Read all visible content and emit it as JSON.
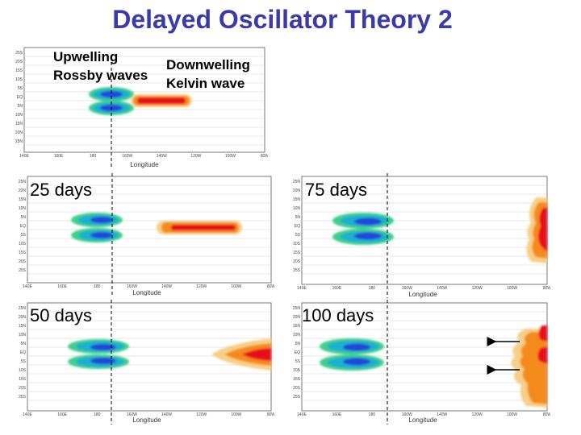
{
  "slide": {
    "title": "Delayed Oscillator Theory 2",
    "labels": {
      "upwelling": "Upwelling",
      "rossby": "Rossby waves",
      "downwelling": "Downwelling",
      "kelvin": "Kelvin wave"
    },
    "arrow_count": 2
  },
  "panels": [
    {
      "id": "initial",
      "caption": "",
      "xlabel": "Longitude",
      "yticks": [
        "25S",
        "20S",
        "15S",
        "10S",
        "5S",
        "EQ",
        "5N",
        "10N",
        "15N",
        "20N",
        "25N"
      ],
      "xticks": [
        "140E",
        "160E",
        "180",
        "160W",
        "140W",
        "120W",
        "100W",
        "80W"
      ]
    },
    {
      "id": "25",
      "caption": "25 days",
      "xlabel": "Longitude",
      "yticks": [
        "25N",
        "20N",
        "15N",
        "10N",
        "5N",
        "EQ",
        "5S",
        "10S",
        "15S",
        "20S",
        "25S"
      ],
      "xticks": [
        "140E",
        "160E",
        "180",
        "160W",
        "140W",
        "120W",
        "100W",
        "80W"
      ]
    },
    {
      "id": "75",
      "caption": "75 days",
      "xlabel": "Longitude",
      "yticks": [
        "25N",
        "20N",
        "15N",
        "10N",
        "5N",
        "EQ",
        "5S",
        "10S",
        "15S",
        "20S",
        "25S"
      ],
      "xticks": [
        "140E",
        "160E",
        "180",
        "160W",
        "140W",
        "120W",
        "100W",
        "80W"
      ]
    },
    {
      "id": "50",
      "caption": "50 days",
      "xlabel": "Longitude",
      "yticks": [
        "25N",
        "20N",
        "15N",
        "10N",
        "5N",
        "EQ",
        "5S",
        "10S",
        "15S",
        "20S",
        "25S"
      ],
      "xticks": [
        "140E",
        "160E",
        "180",
        "160W",
        "140W",
        "120W",
        "100W",
        "80W"
      ]
    },
    {
      "id": "100",
      "caption": "100 days",
      "xlabel": "Longitude",
      "yticks": [
        "25N",
        "20N",
        "15N",
        "10N",
        "5N",
        "EQ",
        "5S",
        "10S",
        "15S",
        "20S",
        "25S"
      ],
      "xticks": [
        "140E",
        "160E",
        "180",
        "160W",
        "140W",
        "120W",
        "100W",
        "80W"
      ]
    }
  ],
  "colors": {
    "title": "#3a3aa8",
    "downwelling_core": "#e8101a",
    "downwelling_mid": "#f58a1f",
    "downwelling_edge": "#f8cf86",
    "upwelling_core": "#2446d8",
    "upwelling_mid": "#1fb0d0",
    "upwelling_edge": "#3fcf8a"
  }
}
